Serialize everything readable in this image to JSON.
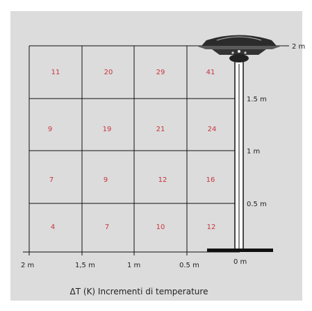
{
  "caption": "ΔT (K) Incrementi di temperature",
  "x_labels": [
    "2 m",
    "1,5 m",
    "1 m",
    "0.5 m",
    "0 m"
  ],
  "height_labels": [
    "2 m",
    "1.5 m",
    "1 m",
    "0.5 m"
  ],
  "grid_values": [
    [
      "11",
      "20",
      "29",
      "41"
    ],
    [
      "9",
      "19",
      "21",
      "24"
    ],
    [
      "7",
      "9",
      "12",
      "16"
    ],
    [
      "4",
      "7",
      "10",
      "12"
    ]
  ],
  "colors": {
    "background": "#dcdcdc",
    "values": "#c8343c",
    "lines": "#111111"
  }
}
